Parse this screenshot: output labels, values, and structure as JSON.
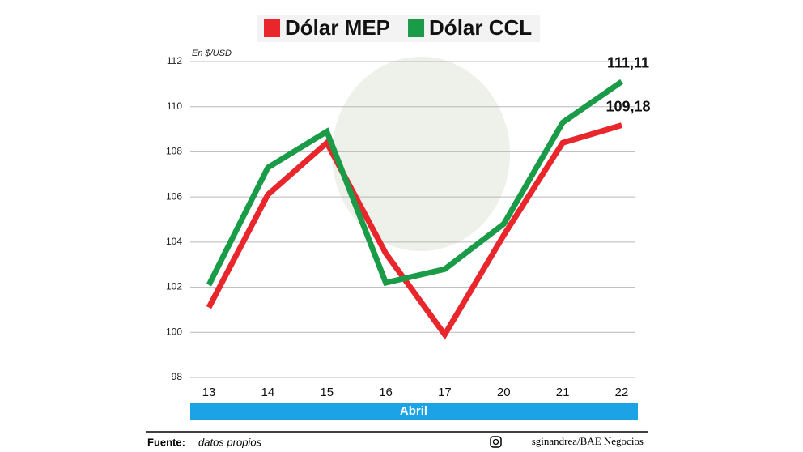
{
  "chart_data": {
    "type": "line",
    "legend": "top",
    "y_axis_label": "En $/USD",
    "x_axis_label": "Abril",
    "categories": [
      "13",
      "14",
      "15",
      "16",
      "17",
      "20",
      "21",
      "22"
    ],
    "series": [
      {
        "name": "Dólar MEP",
        "color": "#e8262c",
        "values": [
          101.1,
          106.1,
          108.4,
          103.5,
          99.9,
          104.3,
          108.4,
          109.18
        ],
        "value_labels": [
          null,
          null,
          null,
          null,
          null,
          null,
          null,
          "109,18"
        ]
      },
      {
        "name": "Dólar CCL",
        "color": "#1a9b48",
        "values": [
          102.1,
          107.3,
          108.9,
          102.2,
          102.8,
          104.8,
          109.3,
          111.11
        ],
        "value_labels": [
          null,
          null,
          null,
          null,
          null,
          null,
          null,
          "111,11"
        ]
      }
    ],
    "ylim": [
      98,
      112
    ],
    "yticks": [
      98,
      100,
      102,
      104,
      106,
      108,
      110,
      112
    ],
    "grid": true,
    "source_label": "Fuente:",
    "source": "datos propios",
    "credit": "sginandrea/BAE Negocios"
  }
}
